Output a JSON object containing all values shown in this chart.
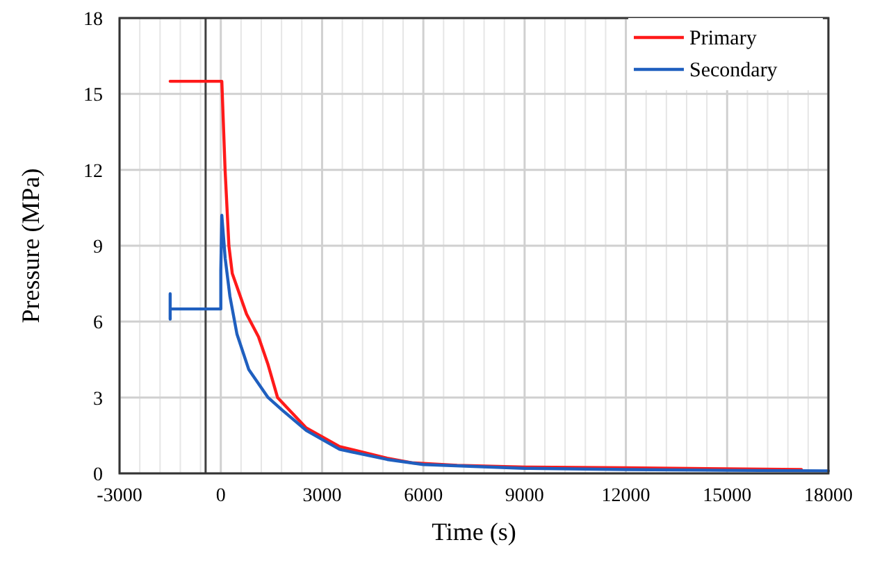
{
  "chart_data": {
    "type": "line",
    "xlabel": "Time (s)",
    "ylabel": "Pressure (MPa)",
    "xlim": [
      -3000,
      18000
    ],
    "xticks": [
      -3000,
      {
        "value": -2400,
        "label": null
      },
      {
        "value": -1800,
        "label": null
      },
      {
        "value": -1200,
        "label": null
      },
      {
        "value": -600,
        "label": null
      },
      0,
      {
        "value": 600,
        "label": null
      },
      {
        "value": 1200,
        "label": null
      },
      {
        "value": 1800,
        "label": null
      },
      {
        "value": 2400,
        "label": null
      },
      3000,
      {
        "value": 3600,
        "label": null
      },
      {
        "value": 4200,
        "label": null
      },
      {
        "value": 4800,
        "label": null
      },
      {
        "value": 5400,
        "label": null
      },
      6000,
      {
        "value": 6600,
        "label": null
      },
      {
        "value": 7200,
        "label": null
      },
      {
        "value": 7800,
        "label": null
      },
      {
        "value": 8400,
        "label": null
      },
      9000,
      {
        "value": 9600,
        "label": null
      },
      {
        "value": 10200,
        "label": null
      },
      {
        "value": 10800,
        "label": null
      },
      {
        "value": 11400,
        "label": null
      },
      12000,
      {
        "value": 12600,
        "label": null
      },
      {
        "value": 13200,
        "label": null
      },
      {
        "value": 13800,
        "label": null
      },
      {
        "value": 14400,
        "label": null
      },
      15000,
      {
        "value": 15600,
        "label": null
      },
      {
        "value": 16200,
        "label": null
      },
      {
        "value": 16800,
        "label": null
      },
      {
        "value": 17400,
        "label": null
      },
      18000
    ],
    "ylim": [
      0,
      18
    ],
    "yticks": [
      0,
      3,
      6,
      9,
      12,
      15,
      18
    ],
    "grid": true,
    "legend": "top right",
    "line_style": "solid",
    "marker": "none",
    "ref_lines": [
      {
        "axis": "x",
        "value": -450,
        "color": "#404040"
      }
    ],
    "series": [
      {
        "name": "Primary",
        "color": "#ff1a1a",
        "x": [
          -1500,
          30,
          127,
          240,
          340,
          763,
          1117,
          1400,
          1681,
          2530,
          3520,
          4930,
          5650,
          7000,
          9000,
          12000,
          15000,
          17200
        ],
        "values": [
          15.5,
          15.5,
          12.0,
          9.0,
          7.9,
          6.3,
          5.4,
          4.3,
          3.0,
          1.8,
          1.06,
          0.6,
          0.42,
          0.32,
          0.25,
          0.22,
          0.18,
          0.15
        ]
      },
      {
        "name": "Secondary",
        "color": "#1f5fbf",
        "x": [
          -1500,
          -1500,
          -1500,
          0,
          0,
          30,
          130,
          270,
          480,
          830,
          1400,
          1820,
          2530,
          3520,
          4930,
          6000,
          9000,
          12000,
          15000,
          18000
        ],
        "values": [
          7.1,
          6.1,
          6.5,
          6.5,
          8.0,
          10.2,
          8.5,
          7.0,
          5.5,
          4.1,
          3.0,
          2.5,
          1.7,
          0.95,
          0.55,
          0.35,
          0.2,
          0.15,
          0.12,
          0.1
        ]
      }
    ]
  }
}
